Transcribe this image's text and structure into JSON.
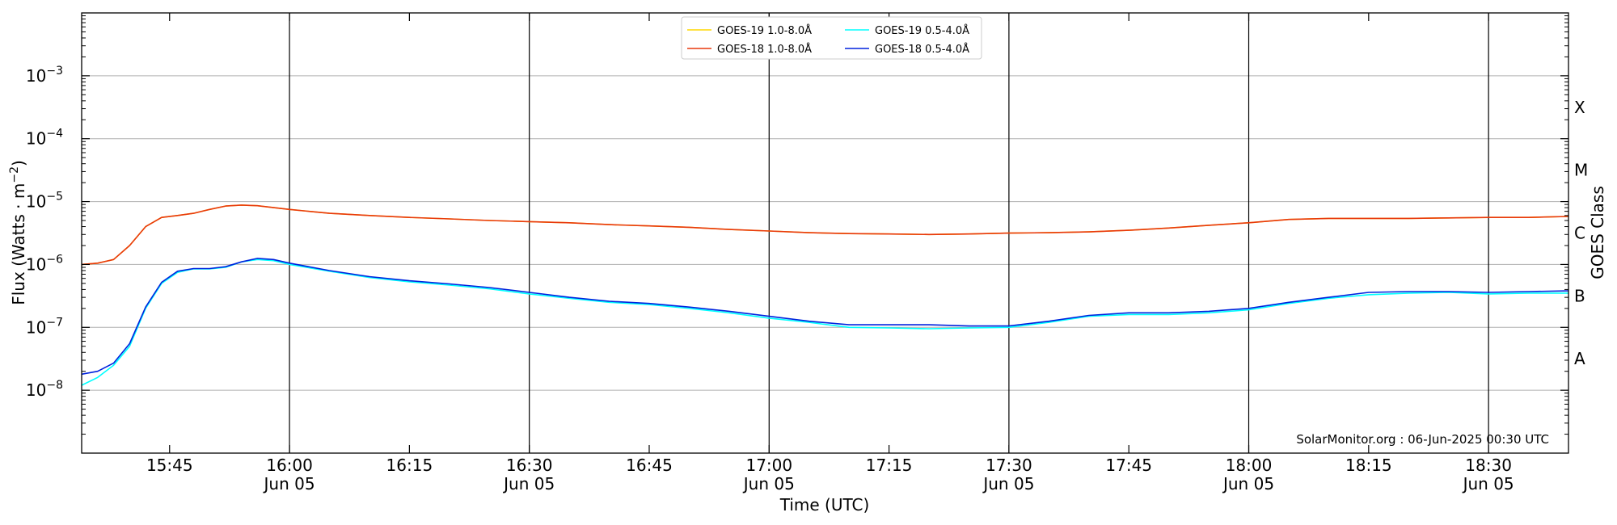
{
  "chart_data": {
    "type": "line",
    "xlabel": "Time (UTC)",
    "ylabel": "Flux (Watts · m⁻²)",
    "ylabel_right": "GOES Class",
    "y_scale": "log",
    "ylim": [
      1e-09,
      0.01
    ],
    "xlim": [
      "15:34",
      "18:40"
    ],
    "y_ticks": [
      {
        "value": 1e-08,
        "mantissa": "10",
        "exp": "−8"
      },
      {
        "value": 1e-07,
        "mantissa": "10",
        "exp": "−7"
      },
      {
        "value": 1e-06,
        "mantissa": "10",
        "exp": "−6"
      },
      {
        "value": 1e-05,
        "mantissa": "10",
        "exp": "−5"
      },
      {
        "value": 0.0001,
        "mantissa": "10",
        "exp": "−4"
      },
      {
        "value": 0.001,
        "mantissa": "10",
        "exp": "−3"
      }
    ],
    "x_ticks": [
      {
        "time": "15:45",
        "label": "15:45",
        "sub": ""
      },
      {
        "time": "16:00",
        "label": "16:00",
        "sub": "Jun 05"
      },
      {
        "time": "16:15",
        "label": "16:15",
        "sub": ""
      },
      {
        "time": "16:30",
        "label": "16:30",
        "sub": "Jun 05"
      },
      {
        "time": "16:45",
        "label": "16:45",
        "sub": ""
      },
      {
        "time": "17:00",
        "label": "17:00",
        "sub": "Jun 05"
      },
      {
        "time": "17:15",
        "label": "17:15",
        "sub": ""
      },
      {
        "time": "17:30",
        "label": "17:30",
        "sub": "Jun 05"
      },
      {
        "time": "17:45",
        "label": "17:45",
        "sub": ""
      },
      {
        "time": "18:00",
        "label": "18:00",
        "sub": "Jun 05"
      },
      {
        "time": "18:15",
        "label": "18:15",
        "sub": ""
      },
      {
        "time": "18:30",
        "label": "18:30",
        "sub": "Jun 05"
      }
    ],
    "vertical_lines": [
      "16:00",
      "16:30",
      "17:00",
      "17:30",
      "18:00",
      "18:30"
    ],
    "goes_classes": [
      {
        "label": "A",
        "value": 3.16e-08
      },
      {
        "label": "B",
        "value": 3.16e-07
      },
      {
        "label": "C",
        "value": 3.16e-06
      },
      {
        "label": "M",
        "value": 3.16e-05
      },
      {
        "label": "X",
        "value": 0.000316
      }
    ],
    "grid": "horizontal",
    "legend_position": "top-center",
    "legend_columns": 2,
    "series": [
      {
        "name": "GOES-19 1.0-8.0Å",
        "color": "#ffd700",
        "points": [
          [
            "15:34",
            1e-06
          ],
          [
            "15:36",
            1.05e-06
          ],
          [
            "15:38",
            1.2e-06
          ],
          [
            "15:40",
            2e-06
          ],
          [
            "15:42",
            4e-06
          ],
          [
            "15:44",
            5.6e-06
          ],
          [
            "15:46",
            6e-06
          ],
          [
            "15:48",
            6.5e-06
          ],
          [
            "15:50",
            7.5e-06
          ],
          [
            "15:52",
            8.5e-06
          ],
          [
            "15:54",
            8.8e-06
          ],
          [
            "15:56",
            8.6e-06
          ],
          [
            "16:00",
            7.5e-06
          ],
          [
            "16:05",
            6.5e-06
          ],
          [
            "16:10",
            6e-06
          ],
          [
            "16:15",
            5.6e-06
          ],
          [
            "16:20",
            5.3e-06
          ],
          [
            "16:25",
            5e-06
          ],
          [
            "16:30",
            4.8e-06
          ],
          [
            "16:35",
            4.6e-06
          ],
          [
            "16:40",
            4.3e-06
          ],
          [
            "16:45",
            4.1e-06
          ],
          [
            "16:50",
            3.9e-06
          ],
          [
            "16:55",
            3.6e-06
          ],
          [
            "17:00",
            3.4e-06
          ],
          [
            "17:05",
            3.2e-06
          ],
          [
            "17:10",
            3.1e-06
          ],
          [
            "17:15",
            3.05e-06
          ],
          [
            "17:20",
            3e-06
          ],
          [
            "17:25",
            3.05e-06
          ],
          [
            "17:30",
            3.15e-06
          ],
          [
            "17:35",
            3.2e-06
          ],
          [
            "17:40",
            3.3e-06
          ],
          [
            "17:45",
            3.5e-06
          ],
          [
            "17:50",
            3.8e-06
          ],
          [
            "17:55",
            4.2e-06
          ],
          [
            "18:00",
            4.6e-06
          ],
          [
            "18:05",
            5.2e-06
          ],
          [
            "18:10",
            5.4e-06
          ],
          [
            "18:15",
            5.4e-06
          ],
          [
            "18:20",
            5.4e-06
          ],
          [
            "18:25",
            5.5e-06
          ],
          [
            "18:30",
            5.6e-06
          ],
          [
            "18:35",
            5.6e-06
          ],
          [
            "18:40",
            5.8e-06
          ]
        ]
      },
      {
        "name": "GOES-18 1.0-8.0Å",
        "color": "#e8380d",
        "points": [
          [
            "15:34",
            1e-06
          ],
          [
            "15:36",
            1.05e-06
          ],
          [
            "15:38",
            1.2e-06
          ],
          [
            "15:40",
            2e-06
          ],
          [
            "15:42",
            4e-06
          ],
          [
            "15:44",
            5.6e-06
          ],
          [
            "15:46",
            6e-06
          ],
          [
            "15:48",
            6.5e-06
          ],
          [
            "15:50",
            7.5e-06
          ],
          [
            "15:52",
            8.5e-06
          ],
          [
            "15:54",
            8.8e-06
          ],
          [
            "15:56",
            8.6e-06
          ],
          [
            "16:00",
            7.5e-06
          ],
          [
            "16:05",
            6.5e-06
          ],
          [
            "16:10",
            6e-06
          ],
          [
            "16:15",
            5.6e-06
          ],
          [
            "16:20",
            5.3e-06
          ],
          [
            "16:25",
            5e-06
          ],
          [
            "16:30",
            4.8e-06
          ],
          [
            "16:35",
            4.6e-06
          ],
          [
            "16:40",
            4.3e-06
          ],
          [
            "16:45",
            4.1e-06
          ],
          [
            "16:50",
            3.9e-06
          ],
          [
            "16:55",
            3.6e-06
          ],
          [
            "17:00",
            3.4e-06
          ],
          [
            "17:05",
            3.2e-06
          ],
          [
            "17:10",
            3.1e-06
          ],
          [
            "17:15",
            3.05e-06
          ],
          [
            "17:20",
            3e-06
          ],
          [
            "17:25",
            3.05e-06
          ],
          [
            "17:30",
            3.15e-06
          ],
          [
            "17:35",
            3.2e-06
          ],
          [
            "17:40",
            3.3e-06
          ],
          [
            "17:45",
            3.5e-06
          ],
          [
            "17:50",
            3.8e-06
          ],
          [
            "17:55",
            4.2e-06
          ],
          [
            "18:00",
            4.6e-06
          ],
          [
            "18:05",
            5.2e-06
          ],
          [
            "18:10",
            5.4e-06
          ],
          [
            "18:15",
            5.4e-06
          ],
          [
            "18:20",
            5.4e-06
          ],
          [
            "18:25",
            5.5e-06
          ],
          [
            "18:30",
            5.6e-06
          ],
          [
            "18:35",
            5.6e-06
          ],
          [
            "18:40",
            5.8e-06
          ]
        ]
      },
      {
        "name": "GOES-19 0.5-4.0Å",
        "color": "#00ffff",
        "points": [
          [
            "15:34",
            1.2e-08
          ],
          [
            "15:36",
            1.6e-08
          ],
          [
            "15:38",
            2.5e-08
          ],
          [
            "15:40",
            5e-08
          ],
          [
            "15:42",
            2e-07
          ],
          [
            "15:44",
            5e-07
          ],
          [
            "15:46",
            7.5e-07
          ],
          [
            "15:48",
            8.5e-07
          ],
          [
            "15:50",
            8.5e-07
          ],
          [
            "15:52",
            9e-07
          ],
          [
            "15:54",
            1.1e-06
          ],
          [
            "15:56",
            1.2e-06
          ],
          [
            "15:58",
            1.15e-06
          ],
          [
            "16:00",
            1e-06
          ],
          [
            "16:05",
            7.8e-07
          ],
          [
            "16:10",
            6.2e-07
          ],
          [
            "16:15",
            5.3e-07
          ],
          [
            "16:20",
            4.7e-07
          ],
          [
            "16:25",
            4.1e-07
          ],
          [
            "16:30",
            3.4e-07
          ],
          [
            "16:35",
            2.9e-07
          ],
          [
            "16:40",
            2.5e-07
          ],
          [
            "16:45",
            2.3e-07
          ],
          [
            "16:50",
            2e-07
          ],
          [
            "16:55",
            1.7e-07
          ],
          [
            "17:00",
            1.4e-07
          ],
          [
            "17:05",
            1.2e-07
          ],
          [
            "17:10",
            1e-07
          ],
          [
            "17:15",
            9.8e-08
          ],
          [
            "17:20",
            9.5e-08
          ],
          [
            "17:25",
            9.8e-08
          ],
          [
            "17:30",
            1e-07
          ],
          [
            "17:35",
            1.2e-07
          ],
          [
            "17:40",
            1.5e-07
          ],
          [
            "17:45",
            1.6e-07
          ],
          [
            "17:50",
            1.6e-07
          ],
          [
            "17:55",
            1.7e-07
          ],
          [
            "18:00",
            1.9e-07
          ],
          [
            "18:05",
            2.4e-07
          ],
          [
            "18:10",
            2.9e-07
          ],
          [
            "18:15",
            3.3e-07
          ],
          [
            "18:20",
            3.5e-07
          ],
          [
            "18:25",
            3.6e-07
          ],
          [
            "18:30",
            3.4e-07
          ],
          [
            "18:35",
            3.5e-07
          ],
          [
            "18:40",
            3.5e-07
          ]
        ]
      },
      {
        "name": "GOES-18 0.5-4.0Å",
        "color": "#0022dd",
        "points": [
          [
            "15:34",
            1.8e-08
          ],
          [
            "15:36",
            2e-08
          ],
          [
            "15:38",
            2.7e-08
          ],
          [
            "15:40",
            5.5e-08
          ],
          [
            "15:42",
            2.1e-07
          ],
          [
            "15:44",
            5.2e-07
          ],
          [
            "15:46",
            7.8e-07
          ],
          [
            "15:48",
            8.6e-07
          ],
          [
            "15:50",
            8.6e-07
          ],
          [
            "15:52",
            9.2e-07
          ],
          [
            "15:54",
            1.1e-06
          ],
          [
            "15:56",
            1.25e-06
          ],
          [
            "15:58",
            1.2e-06
          ],
          [
            "16:00",
            1.05e-06
          ],
          [
            "16:05",
            8e-07
          ],
          [
            "16:10",
            6.4e-07
          ],
          [
            "16:15",
            5.5e-07
          ],
          [
            "16:20",
            4.9e-07
          ],
          [
            "16:25",
            4.3e-07
          ],
          [
            "16:30",
            3.6e-07
          ],
          [
            "16:35",
            3e-07
          ],
          [
            "16:40",
            2.6e-07
          ],
          [
            "16:45",
            2.4e-07
          ],
          [
            "16:50",
            2.1e-07
          ],
          [
            "16:55",
            1.8e-07
          ],
          [
            "17:00",
            1.5e-07
          ],
          [
            "17:05",
            1.25e-07
          ],
          [
            "17:10",
            1.1e-07
          ],
          [
            "17:15",
            1.1e-07
          ],
          [
            "17:20",
            1.1e-07
          ],
          [
            "17:25",
            1.05e-07
          ],
          [
            "17:30",
            1.05e-07
          ],
          [
            "17:35",
            1.25e-07
          ],
          [
            "17:40",
            1.55e-07
          ],
          [
            "17:45",
            1.7e-07
          ],
          [
            "17:50",
            1.7e-07
          ],
          [
            "17:55",
            1.8e-07
          ],
          [
            "18:00",
            2e-07
          ],
          [
            "18:05",
            2.5e-07
          ],
          [
            "18:10",
            3e-07
          ],
          [
            "18:15",
            3.6e-07
          ],
          [
            "18:20",
            3.7e-07
          ],
          [
            "18:25",
            3.7e-07
          ],
          [
            "18:30",
            3.6e-07
          ],
          [
            "18:35",
            3.7e-07
          ],
          [
            "18:40",
            3.8e-07
          ]
        ]
      }
    ],
    "annotation": "SolarMonitor.org : 06-Jun-2025 00:30 UTC"
  }
}
